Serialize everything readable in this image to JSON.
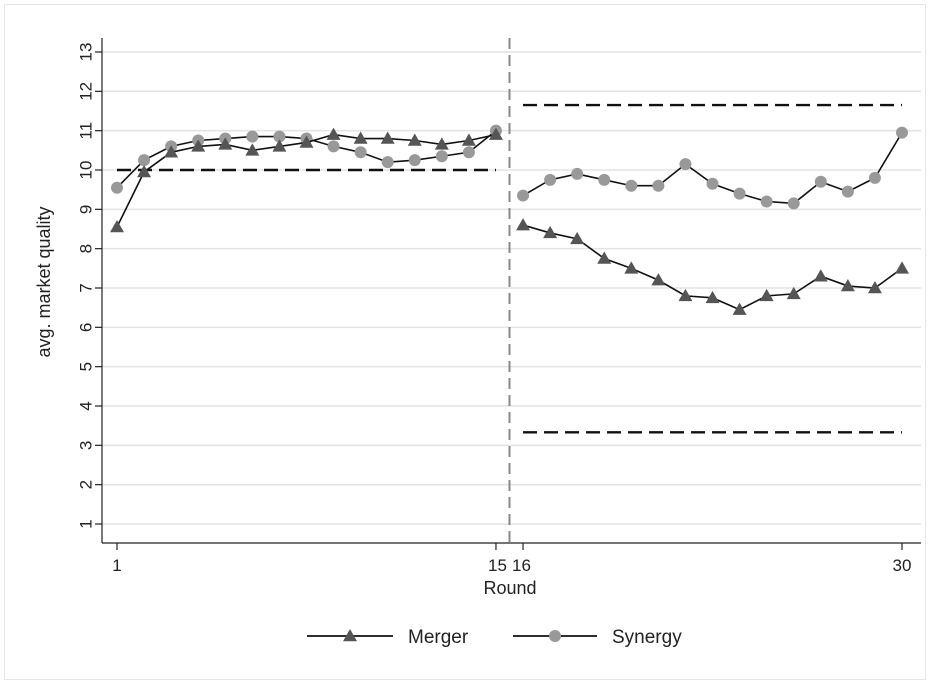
{
  "chart_data": {
    "type": "line",
    "xlabel": "Round",
    "ylabel": "avg. market quality",
    "ylim": [
      0.6,
      13.4
    ],
    "y_ticks": [
      "1",
      "2",
      "3",
      "4",
      "5",
      "6",
      "7",
      "8",
      "9",
      "10",
      "11",
      "12",
      "13"
    ],
    "x_tick_labels": [
      "1",
      "15",
      "16",
      "30"
    ],
    "grid": "horizontal",
    "vertical_divider": 15.5,
    "series": [
      {
        "name": "Merger",
        "marker": "triangle",
        "color": "#555555",
        "x": [
          1,
          2,
          3,
          4,
          5,
          6,
          7,
          8,
          9,
          10,
          11,
          12,
          13,
          14,
          15,
          16,
          17,
          18,
          19,
          20,
          21,
          22,
          23,
          24,
          25,
          26,
          27,
          28,
          29,
          30
        ],
        "values": [
          8.55,
          9.95,
          10.45,
          10.6,
          10.65,
          10.5,
          10.6,
          10.7,
          10.9,
          10.8,
          10.8,
          10.75,
          10.65,
          10.75,
          10.9,
          8.6,
          8.4,
          8.25,
          7.75,
          7.5,
          7.2,
          6.8,
          6.75,
          6.45,
          6.8,
          6.85,
          7.3,
          7.05,
          7.0,
          7.5
        ]
      },
      {
        "name": "Synergy",
        "marker": "circle",
        "color": "#999999",
        "x": [
          1,
          2,
          3,
          4,
          5,
          6,
          7,
          8,
          9,
          10,
          11,
          12,
          13,
          14,
          15,
          16,
          17,
          18,
          19,
          20,
          21,
          22,
          23,
          24,
          25,
          26,
          27,
          28,
          29,
          30
        ],
        "values": [
          9.55,
          10.25,
          10.6,
          10.75,
          10.8,
          10.85,
          10.85,
          10.8,
          10.6,
          10.45,
          10.2,
          10.25,
          10.35,
          10.45,
          11.0,
          9.35,
          9.75,
          9.9,
          9.75,
          9.6,
          9.6,
          10.15,
          9.65,
          9.4,
          9.2,
          9.15,
          9.7,
          9.45,
          9.8,
          10.95
        ]
      }
    ],
    "reference_lines": [
      {
        "y": 10.0,
        "x_from": 1,
        "x_to": 15
      },
      {
        "y": 11.65,
        "x_from": 16,
        "x_to": 30
      },
      {
        "y": 3.33,
        "x_from": 16,
        "x_to": 30
      }
    ],
    "legend": {
      "position": "bottom",
      "entries": [
        "Merger",
        "Synergy"
      ]
    }
  }
}
